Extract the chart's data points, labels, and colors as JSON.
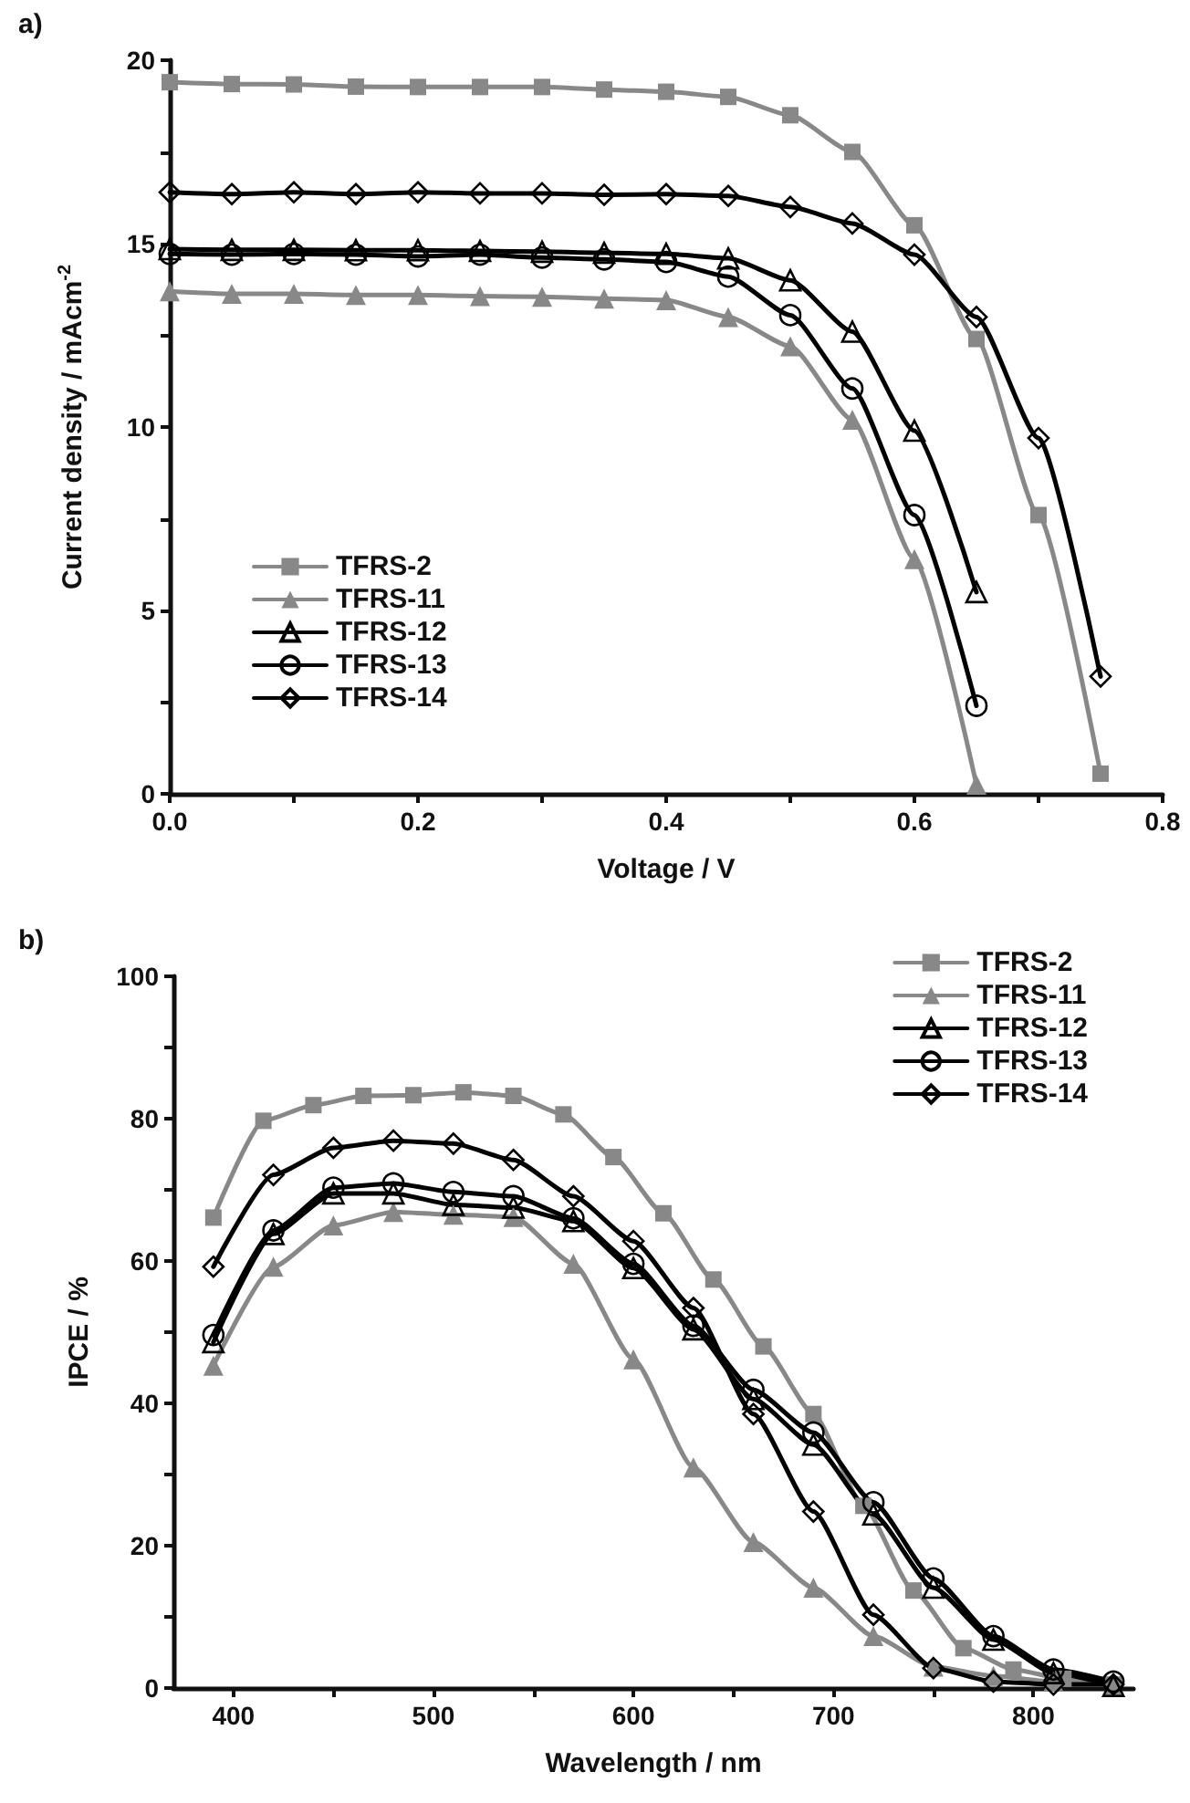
{
  "chart_data": [
    {
      "type": "line",
      "xlabel": "Voltage / V",
      "ylabel": "Current density / mAcm$^{-2}$",
      "annotations": [
        "a)"
      ],
      "xlim": [
        0,
        0.8
      ],
      "xticks": [
        {
          "value": 0,
          "label": "0.0"
        },
        0.2,
        0.4,
        0.6,
        0.8
      ],
      "ylim": [
        0,
        20
      ],
      "yticks": [
        0,
        5,
        10,
        15,
        20
      ],
      "grid": false,
      "legend": "bottom left",
      "line_style": "solid",
      "series": [
        {
          "name": "TFRS-2",
          "color": "#888888",
          "marker": "square",
          "x": [
            0,
            0.05,
            0.1,
            0.15,
            0.2,
            0.25,
            0.3,
            0.35,
            0.4,
            0.45,
            0.5,
            0.55,
            0.6,
            0.65,
            0.7,
            0.75
          ],
          "values": [
            19.4,
            19.35,
            19.34,
            19.28,
            19.27,
            19.27,
            19.27,
            19.2,
            19.14,
            19.0,
            18.5,
            17.5,
            15.5,
            12.4,
            7.6,
            0.55
          ]
        },
        {
          "name": "TFRS-11",
          "color": "#888888",
          "marker": "triangle",
          "x": [
            0,
            0.05,
            0.1,
            0.15,
            0.2,
            0.25,
            0.3,
            0.35,
            0.4,
            0.45,
            0.5,
            0.55,
            0.6,
            0.65
          ],
          "values": [
            13.7,
            13.63,
            13.63,
            13.6,
            13.6,
            13.57,
            13.55,
            13.5,
            13.46,
            13.0,
            12.2,
            10.2,
            6.4,
            0.25
          ]
        },
        {
          "name": "TFRS-12",
          "color": "#000000",
          "marker": "triangle",
          "x": [
            0,
            0.05,
            0.1,
            0.15,
            0.2,
            0.25,
            0.3,
            0.35,
            0.4,
            0.45,
            0.5,
            0.55,
            0.6,
            0.65
          ],
          "values": [
            14.85,
            14.83,
            14.83,
            14.82,
            14.82,
            14.8,
            14.78,
            14.75,
            14.72,
            14.6,
            14.0,
            12.6,
            9.9,
            5.5
          ]
        },
        {
          "name": "TFRS-13",
          "color": "#000000",
          "marker": "circle",
          "x": [
            0,
            0.05,
            0.1,
            0.15,
            0.2,
            0.25,
            0.3,
            0.35,
            0.4,
            0.45,
            0.5,
            0.55,
            0.6,
            0.65
          ],
          "values": [
            14.72,
            14.7,
            14.72,
            14.7,
            14.65,
            14.7,
            14.62,
            14.57,
            14.5,
            14.1,
            13.05,
            11.05,
            7.6,
            2.4
          ]
        },
        {
          "name": "TFRS-14",
          "color": "#000000",
          "marker": "diamond",
          "x": [
            0,
            0.05,
            0.1,
            0.15,
            0.2,
            0.25,
            0.3,
            0.35,
            0.4,
            0.45,
            0.5,
            0.55,
            0.6,
            0.65,
            0.7,
            0.75
          ],
          "values": [
            16.4,
            16.35,
            16.4,
            16.35,
            16.4,
            16.37,
            16.37,
            16.33,
            16.35,
            16.3,
            16.0,
            15.55,
            14.7,
            13.0,
            9.7,
            3.2
          ]
        }
      ]
    },
    {
      "type": "line",
      "xlabel": "Wavelength / nm",
      "ylabel": "IPCE / %",
      "annotations": [
        "b)"
      ],
      "xlim": [
        370,
        850
      ],
      "xticks": [
        400,
        500,
        600,
        700,
        800
      ],
      "ylim": [
        0,
        100
      ],
      "yticks": [
        0,
        20,
        40,
        60,
        80,
        100
      ],
      "grid": false,
      "legend": "top right",
      "line_style": "solid",
      "series": [
        {
          "name": "TFRS-2",
          "color": "#888888",
          "marker": "square",
          "x": [
            390,
            415,
            440,
            465,
            490,
            515,
            540,
            565,
            590,
            615,
            640,
            665,
            690,
            715,
            740,
            765,
            790,
            815,
            840
          ],
          "values": [
            66.1,
            79.7,
            81.9,
            83.2,
            83.3,
            83.7,
            83.2,
            80.6,
            74.6,
            66.7,
            57.4,
            48.0,
            38.5,
            25.6,
            13.7,
            5.6,
            2.6,
            1.3,
            0.5
          ]
        },
        {
          "name": "TFRS-11",
          "color": "#888888",
          "marker": "triangle",
          "x": [
            390,
            420,
            450,
            480,
            510,
            540,
            570,
            600,
            630,
            660,
            690,
            720,
            750,
            780,
            810,
            840
          ],
          "values": [
            45.3,
            59.2,
            65.0,
            66.9,
            66.5,
            66.2,
            59.6,
            46.2,
            31.0,
            20.5,
            14.1,
            7.3,
            3.0,
            1.7,
            0.9,
            0.5
          ]
        },
        {
          "name": "TFRS-12",
          "color": "#000000",
          "marker": "triangle",
          "x": [
            390,
            420,
            450,
            480,
            510,
            540,
            570,
            600,
            630,
            660,
            690,
            720,
            750,
            780,
            810,
            840
          ],
          "values": [
            48.6,
            63.8,
            69.5,
            69.5,
            67.9,
            67.5,
            65.6,
            59.0,
            50.4,
            40.6,
            34.2,
            24.4,
            14.1,
            6.8,
            2.1,
            0.3
          ]
        },
        {
          "name": "TFRS-13",
          "color": "#000000",
          "marker": "circle",
          "x": [
            390,
            420,
            450,
            480,
            510,
            540,
            570,
            600,
            630,
            660,
            690,
            720,
            750,
            780,
            810,
            840
          ],
          "values": [
            49.6,
            64.3,
            70.3,
            70.9,
            69.7,
            69.1,
            66.0,
            59.6,
            50.9,
            41.9,
            35.9,
            26.1,
            15.4,
            7.3,
            2.6,
            0.9
          ]
        },
        {
          "name": "TFRS-14",
          "color": "#000000",
          "marker": "diamond",
          "x": [
            390,
            420,
            450,
            480,
            510,
            540,
            570,
            600,
            630,
            660,
            690,
            720,
            750,
            780,
            810,
            840
          ],
          "values": [
            59.2,
            72.1,
            75.9,
            76.9,
            76.5,
            74.2,
            69.1,
            62.8,
            53.4,
            38.5,
            24.8,
            10.3,
            2.8,
            0.9,
            0.5,
            0.5
          ]
        }
      ]
    }
  ]
}
